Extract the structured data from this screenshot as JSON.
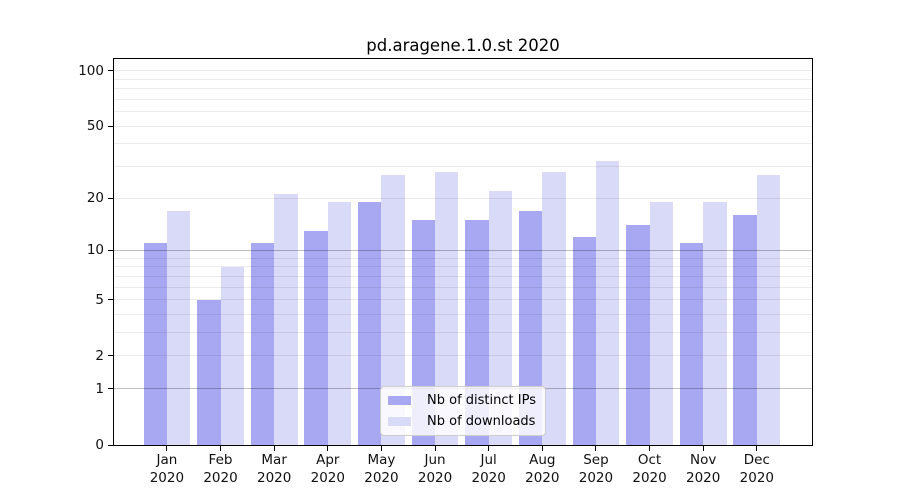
{
  "chart_data": {
    "type": "bar",
    "title": "pd.aragene.1.0.st 2020",
    "categories": [
      "Jan 2020",
      "Feb 2020",
      "Mar 2020",
      "Apr 2020",
      "May 2020",
      "Jun 2020",
      "Jul 2020",
      "Aug 2020",
      "Sep 2020",
      "Oct 2020",
      "Nov 2020",
      "Dec 2020"
    ],
    "series": [
      {
        "name": "Nb of distinct IPs",
        "color": "#a8a8f2",
        "values": [
          11,
          5,
          11,
          13,
          19,
          15,
          15,
          17,
          12,
          14,
          11,
          16
        ]
      },
      {
        "name": "Nb of downloads",
        "color": "#d9d9f8",
        "values": [
          17,
          8,
          21,
          19,
          27,
          28,
          22,
          28,
          32,
          19,
          19,
          27
        ]
      }
    ],
    "xlabel": "",
    "ylabel": "",
    "yscale": "log1p",
    "yticks": [
      0,
      1,
      2,
      5,
      10,
      20,
      50,
      100
    ],
    "ylim": [
      0,
      115
    ],
    "grid": {
      "on": true,
      "major": [
        1,
        10
      ],
      "minor": [
        2,
        3,
        4,
        5,
        6,
        7,
        8,
        9,
        20,
        30,
        40,
        50,
        60,
        70,
        80,
        90,
        100
      ]
    },
    "legend_position": "lower center",
    "colors": {
      "spine": "#000000",
      "tick_label": "#111111",
      "grid_major": "rgba(0,0,0,0.25)",
      "grid_minor": "rgba(0,0,0,0.08)",
      "legend_border": "#cccccc",
      "legend_background": "rgba(255,255,255,0.8)"
    }
  }
}
